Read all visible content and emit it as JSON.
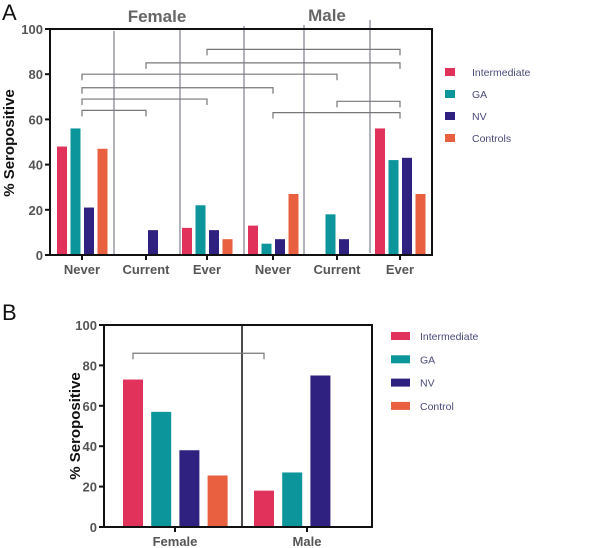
{
  "colors": {
    "Intermediate": "#e0325a",
    "GA": "#0c969c",
    "NV": "#2e2180",
    "Controls": "#e8603f",
    "divider": "#8a8a9a",
    "axis": "#111111"
  },
  "chart_data": [
    {
      "type": "bar",
      "panel_label": "A",
      "title_groups": [
        "Female",
        "Male"
      ],
      "ylabel": "% Seropositive",
      "ylim": [
        0,
        100
      ],
      "yticks": [
        0,
        20,
        40,
        60,
        80,
        100
      ],
      "categories": [
        "Never",
        "Current",
        "Ever",
        "Never",
        "Current",
        "Ever"
      ],
      "legend": [
        "Intermediate",
        "GA",
        "NV",
        "Controls"
      ],
      "legend_placement": "right",
      "series": [
        {
          "name": "Intermediate",
          "values": [
            48,
            null,
            12,
            13,
            null,
            56
          ]
        },
        {
          "name": "GA",
          "values": [
            56,
            null,
            22,
            5,
            18,
            42
          ]
        },
        {
          "name": "NV",
          "values": [
            21,
            11,
            11,
            7,
            7,
            43
          ]
        },
        {
          "name": "Controls",
          "values": [
            47,
            null,
            7,
            27,
            null,
            27
          ]
        }
      ],
      "comparisons": [
        {
          "from": 2,
          "to": 5,
          "level": 91
        },
        {
          "from": 1,
          "to": 5,
          "level": 85
        },
        {
          "from": 0,
          "to": 4,
          "level": 80
        },
        {
          "from": 0,
          "to": 3,
          "level": 74
        },
        {
          "from": 0,
          "to": 2,
          "level": 69
        },
        {
          "from": 4,
          "to": 5,
          "level": 68
        },
        {
          "from": 0,
          "to": 1,
          "level": 64
        },
        {
          "from": 3,
          "to": 5,
          "level": 63
        }
      ]
    },
    {
      "type": "bar",
      "panel_label": "B",
      "ylabel": "% Seropositive",
      "ylim": [
        0,
        100
      ],
      "yticks": [
        0,
        20,
        40,
        60,
        80,
        100
      ],
      "categories": [
        "Female",
        "Male"
      ],
      "legend": [
        "Intermediate",
        "GA",
        "NV",
        "Control"
      ],
      "legend_placement": "right",
      "series": [
        {
          "name": "Intermediate",
          "values": [
            73,
            18
          ]
        },
        {
          "name": "GA",
          "values": [
            57,
            27
          ]
        },
        {
          "name": "NV",
          "values": [
            38,
            75
          ]
        },
        {
          "name": "Control",
          "values": [
            25.5,
            null
          ]
        }
      ],
      "comparisons": [
        {
          "from_bar": [
            0,
            0
          ],
          "to_bar": [
            1,
            0
          ],
          "level": 86
        }
      ]
    }
  ]
}
